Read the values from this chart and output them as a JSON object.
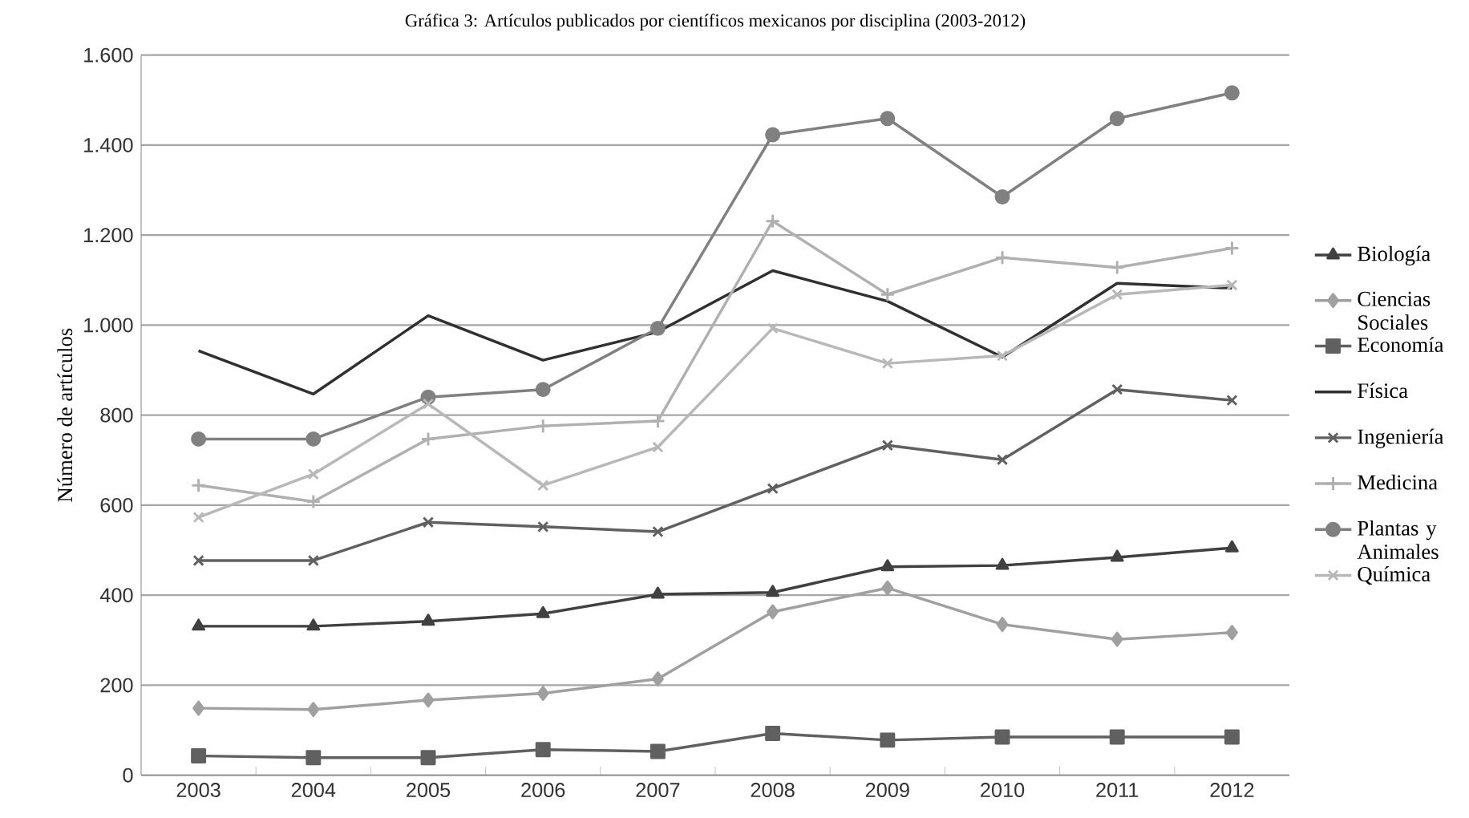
{
  "chart_data": {
    "type": "line",
    "title": "Gráfica 3:  Artículos publicados por científicos mexicanos por disciplina (2003-2012)",
    "ylabel": "Número de artículos",
    "categories": [
      "2003",
      "2004",
      "2005",
      "2006",
      "2007",
      "2008",
      "2009",
      "2010",
      "2011",
      "2012"
    ],
    "ylim": [
      0,
      1600
    ],
    "yticks": [
      0,
      {
        "value": 200,
        "label": "200"
      },
      {
        "value": 400,
        "label": "400"
      },
      {
        "value": 600,
        "label": "600"
      },
      {
        "value": 800,
        "label": "800"
      },
      {
        "value": 1000,
        "label": "1.000"
      },
      {
        "value": 1200,
        "label": "1.200"
      },
      {
        "value": 1400,
        "label": "1.400"
      },
      {
        "value": 1600,
        "label": "1.600"
      }
    ],
    "grid": "y",
    "legend": "right",
    "line_style": "solid",
    "series": [
      {
        "name": "Biología",
        "color": "#404040",
        "marker": "triangle",
        "values": [
          331,
          331,
          342,
          359,
          402,
          406,
          463,
          466,
          484,
          505
        ]
      },
      {
        "name": "Ciencias Sociales",
        "color": "#a0a0a0",
        "marker": "diamond",
        "values": [
          149,
          146,
          167,
          182,
          214,
          363,
          416,
          335,
          302,
          317
        ]
      },
      {
        "name": "Economía",
        "color": "#606060",
        "marker": "square",
        "values": [
          43,
          39,
          39,
          57,
          53,
          93,
          78,
          85,
          85,
          85
        ]
      },
      {
        "name": "Física",
        "color": "#303030",
        "marker": "none",
        "values": [
          943,
          847,
          1021,
          922,
          985,
          1121,
          1053,
          929,
          1093,
          1082
        ]
      },
      {
        "name": "Ingeniería",
        "color": "#606060",
        "marker": "cross",
        "values": [
          477,
          477,
          562,
          552,
          541,
          637,
          733,
          701,
          857,
          833
        ]
      },
      {
        "name": "Medicina",
        "color": "#b0b0b0",
        "marker": "plus",
        "values": [
          644,
          608,
          747,
          776,
          787,
          1231,
          1068,
          1150,
          1128,
          1171
        ]
      },
      {
        "name": "Plantas y Animales",
        "color": "#808080",
        "marker": "circle",
        "values": [
          747,
          747,
          840,
          857,
          993,
          1423,
          1459,
          1285,
          1459,
          1516
        ]
      },
      {
        "name": "Química",
        "color": "#b8b8b8",
        "marker": "cross",
        "values": [
          573,
          669,
          825,
          644,
          729,
          993,
          915,
          932,
          1068,
          1089
        ]
      }
    ]
  }
}
